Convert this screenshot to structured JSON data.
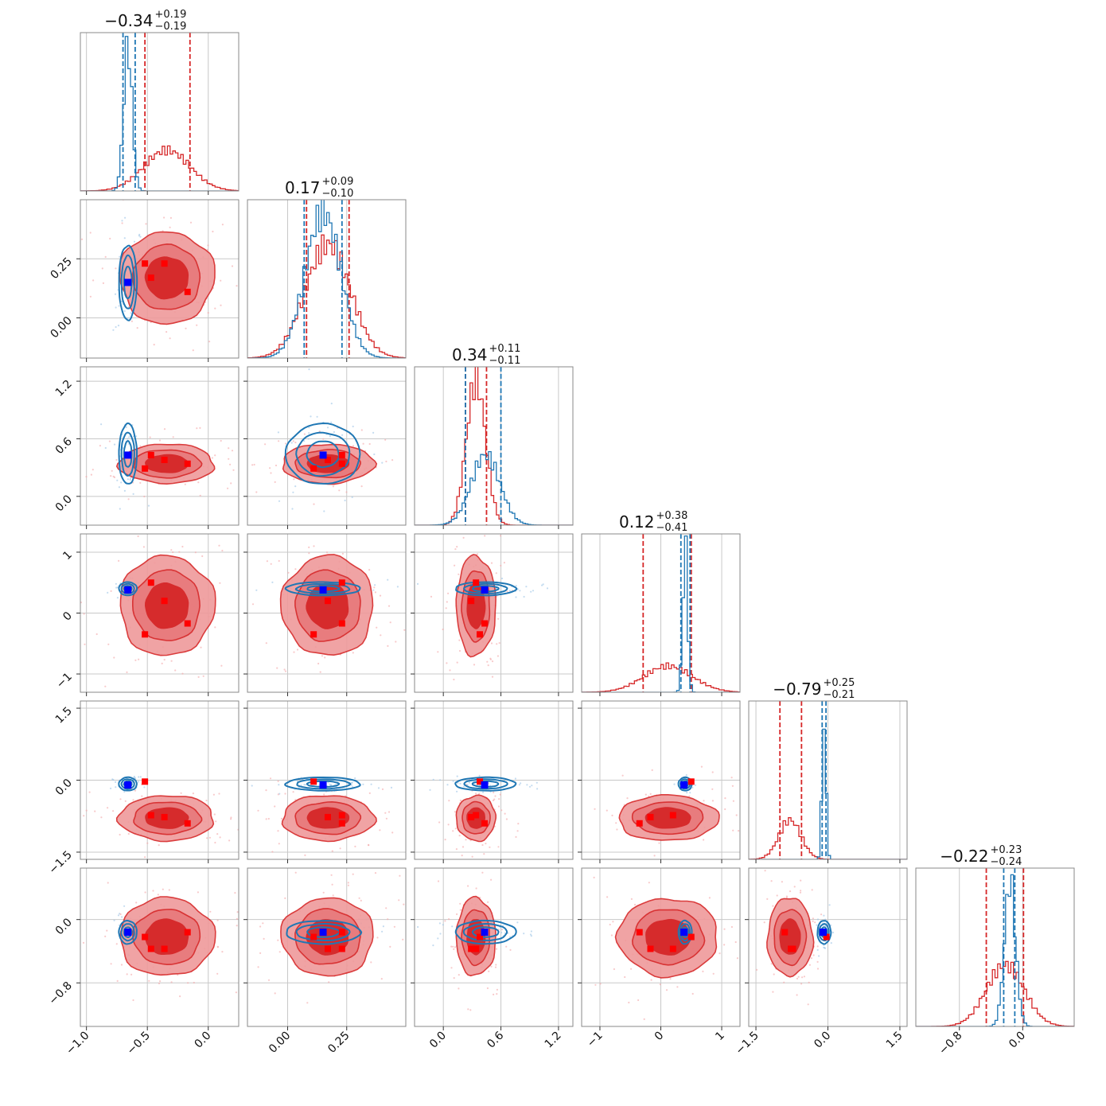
{
  "chart_data": {
    "type": "corner",
    "n_params": 6,
    "series": [
      {
        "name": "",
        "color": "#d62728",
        "role": "red posterior (filled contours)"
      },
      {
        "name": "",
        "color": "#1f77b4",
        "role": "blue posterior (line contours)"
      }
    ],
    "colors": {
      "red": "#d62728",
      "red_light": "#ef9a9b",
      "red_mid": "#e06668",
      "blue": "#1f77b4",
      "blue_pt": "#0000ff",
      "red_pt": "#ff0000",
      "grid": "#c8c8c8",
      "frame": "#888888"
    },
    "params": [
      {
        "title_main": "−0.34",
        "title_plus": "+0.19",
        "title_minus": "−0.19",
        "range": [
          -1.05,
          0.25
        ],
        "ticks": [
          {
            "v": -1.0,
            "label": "−1.0"
          },
          {
            "v": -0.5,
            "label": "−0.5"
          },
          {
            "v": 0.0,
            "label": "0.0"
          }
        ],
        "red": {
          "mean": -0.34,
          "sd": 0.19,
          "q": [
            -0.52,
            -0.15
          ],
          "hist_peak": 0.28
        },
        "blue": {
          "mean": -0.66,
          "sd": 0.035,
          "q": [
            -0.7,
            -0.6
          ],
          "hist_peak": 1.0
        },
        "red_points": [
          -0.52,
          -0.47,
          -0.36,
          -0.17
        ],
        "blue_point": -0.66
      },
      {
        "title_main": "0.17",
        "title_plus": "+0.09",
        "title_minus": "−0.10",
        "range": [
          -0.17,
          0.5
        ],
        "ticks": [
          {
            "v": 0.0,
            "label": "0.00"
          },
          {
            "v": 0.25,
            "label": "0.25"
          }
        ],
        "red": {
          "mean": 0.17,
          "sd": 0.095,
          "q": [
            0.08,
            0.26
          ],
          "hist_peak": 0.78
        },
        "blue": {
          "mean": 0.15,
          "sd": 0.075,
          "q": [
            0.07,
            0.23
          ],
          "hist_peak": 1.0
        },
        "red_points": [
          0.11,
          0.23,
          0.17,
          0.23
        ],
        "blue_point": 0.15
      },
      {
        "title_main": "0.34",
        "title_plus": "+0.11",
        "title_minus": "−0.11",
        "range": [
          -0.3,
          1.35
        ],
        "ticks": [
          {
            "v": 0.0,
            "label": "0.0"
          },
          {
            "v": 0.6,
            "label": "0.6"
          },
          {
            "v": 1.2,
            "label": "1.2"
          }
        ],
        "red": {
          "mean": 0.34,
          "sd": 0.1,
          "q": [
            0.23,
            0.45
          ],
          "hist_peak": 1.0
        },
        "blue": {
          "mean": 0.44,
          "sd": 0.15,
          "q": [
            0.23,
            0.6
          ],
          "hist_peak": 0.48
        },
        "red_points": [
          0.38,
          0.34,
          0.29,
          0.43
        ],
        "blue_point": 0.43
      },
      {
        "title_main": "0.12",
        "title_plus": "+0.38",
        "title_minus": "−0.41",
        "range": [
          -1.3,
          1.3
        ],
        "ticks": [
          {
            "v": -1.0,
            "label": "−1"
          },
          {
            "v": 0.0,
            "label": "0"
          },
          {
            "v": 1.0,
            "label": "1"
          }
        ],
        "red": {
          "mean": 0.12,
          "sd": 0.4,
          "q": [
            -0.29,
            0.5
          ],
          "hist_peak": 0.18
        },
        "blue": {
          "mean": 0.4,
          "sd": 0.04,
          "q": [
            0.33,
            0.48
          ],
          "hist_peak": 1.0
        },
        "red_points": [
          0.5,
          0.2,
          -0.17,
          -0.35
        ],
        "blue_point": 0.38
      },
      {
        "title_main": "−0.79",
        "title_plus": "+0.25",
        "title_minus": "−0.21",
        "range": [
          -1.65,
          1.65
        ],
        "ticks": [
          {
            "v": -1.5,
            "label": "−1.5"
          },
          {
            "v": 0.0,
            "label": "0.0"
          },
          {
            "v": 1.5,
            "label": "1.5"
          }
        ],
        "red": {
          "mean": -0.79,
          "sd": 0.23,
          "q": [
            -1.0,
            -0.55
          ],
          "hist_peak": 0.27
        },
        "blue": {
          "mean": -0.08,
          "sd": 0.04,
          "q": [
            -0.12,
            -0.04
          ],
          "hist_peak": 1.0
        },
        "red_points": [
          -0.03,
          -0.73,
          -0.77,
          -0.9
        ],
        "blue_point": -0.1
      },
      {
        "title_main": "−0.22",
        "title_plus": "+0.23",
        "title_minus": "−0.24",
        "range": [
          -1.35,
          0.65
        ],
        "ticks": [
          {
            "v": -0.8,
            "label": "−0.8"
          },
          {
            "v": 0.0,
            "label": "0.0"
          }
        ],
        "red": {
          "mean": -0.22,
          "sd": 0.24,
          "q": [
            -0.46,
            0.01
          ],
          "hist_peak": 0.42
        },
        "blue": {
          "mean": -0.16,
          "sd": 0.07,
          "q": [
            -0.24,
            -0.1
          ],
          "hist_peak": 1.0
        },
        "red_points": [
          -0.16,
          -0.22,
          -0.37,
          -0.37
        ],
        "blue_point": -0.16
      }
    ]
  }
}
